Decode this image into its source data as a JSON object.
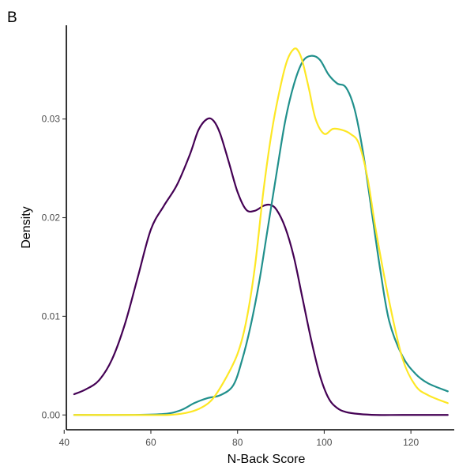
{
  "panel_label": "B",
  "chart_data": {
    "type": "line",
    "xlabel": "N-Back Score",
    "ylabel": "Density",
    "xlim": [
      40.5,
      130
    ],
    "ylim": [
      -0.0015,
      0.0395
    ],
    "x_ticks": [
      40,
      60,
      80,
      100,
      120
    ],
    "y_ticks": [
      0.0,
      0.01,
      0.02,
      0.03
    ],
    "y_tick_labels": [
      "0.00",
      "0.01",
      "0.02",
      "0.03"
    ],
    "grid": false,
    "legend": "none",
    "series": [
      {
        "color": "#440154",
        "x": [
          42.3,
          45,
          48,
          51,
          54,
          57,
          60,
          63,
          66,
          69,
          71,
          73,
          74.5,
          76,
          78,
          80,
          82,
          84,
          86,
          87.5,
          89,
          91,
          93,
          95,
          97,
          99,
          101,
          103,
          105,
          108,
          112,
          118,
          128.5
        ],
        "y": [
          0.0021,
          0.0026,
          0.0035,
          0.0056,
          0.0092,
          0.014,
          0.0188,
          0.0212,
          0.0233,
          0.0264,
          0.0289,
          0.03,
          0.0298,
          0.0285,
          0.0256,
          0.0226,
          0.0208,
          0.0207,
          0.0212,
          0.0213,
          0.0208,
          0.019,
          0.016,
          0.0118,
          0.0076,
          0.004,
          0.0017,
          0.0007,
          0.0003,
          0.0001,
          0.0,
          0.0,
          0.0
        ]
      },
      {
        "color": "#21908C",
        "x": [
          42.3,
          55,
          63,
          67,
          70,
          73,
          76,
          79,
          81,
          83,
          85,
          87,
          89,
          91,
          93,
          95,
          97,
          99,
          101,
          103,
          105,
          107,
          109,
          111,
          113,
          115,
          118,
          121,
          124,
          128.5
        ],
        "y": [
          0.0,
          0.0,
          0.0001,
          0.0005,
          0.0012,
          0.0017,
          0.002,
          0.003,
          0.0055,
          0.009,
          0.0135,
          0.019,
          0.0245,
          0.0298,
          0.0335,
          0.0358,
          0.0364,
          0.036,
          0.0345,
          0.0336,
          0.0332,
          0.031,
          0.0265,
          0.0205,
          0.0145,
          0.0095,
          0.006,
          0.0042,
          0.0032,
          0.0024
        ]
      },
      {
        "color": "#FDE725",
        "x": [
          42.3,
          55,
          64,
          68,
          71,
          74,
          77,
          80,
          82,
          84,
          86,
          88,
          90,
          91.5,
          93,
          94,
          95,
          96.5,
          98,
          100,
          102,
          104,
          106,
          108,
          110,
          112,
          115,
          118,
          121,
          124,
          128.5
        ],
        "y": [
          0.0,
          0.0,
          0.0,
          0.0002,
          0.0006,
          0.0015,
          0.0035,
          0.0062,
          0.0095,
          0.015,
          0.0228,
          0.029,
          0.0335,
          0.036,
          0.0371,
          0.0369,
          0.0358,
          0.033,
          0.03,
          0.0285,
          0.029,
          0.0289,
          0.0285,
          0.0275,
          0.024,
          0.0185,
          0.0115,
          0.0058,
          0.003,
          0.002,
          0.0012
        ]
      }
    ]
  }
}
